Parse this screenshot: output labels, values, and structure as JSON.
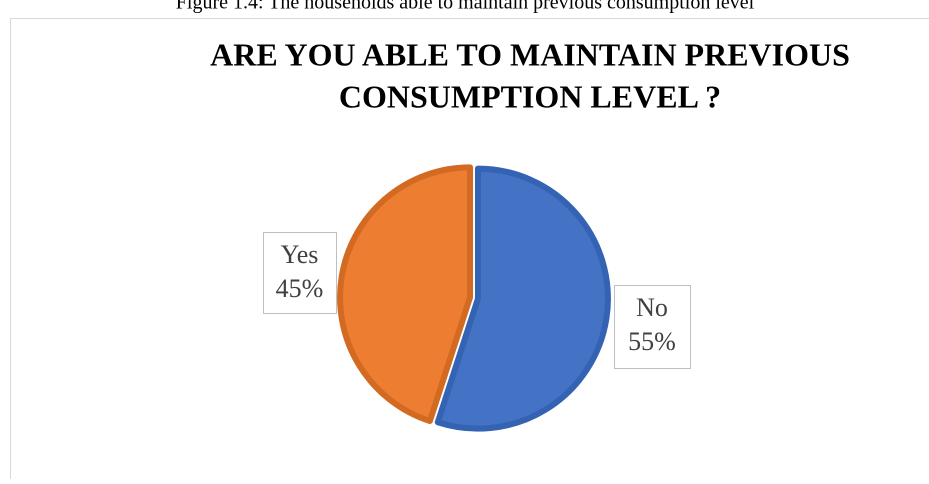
{
  "caption": "Figure 1.4: The households able to maintain previous consumption level",
  "chart_data": {
    "type": "pie",
    "title": [
      "ARE YOU ABLE TO MAINTAIN PREVIOUS",
      "CONSUMPTION LEVEL ?"
    ],
    "categories": [
      "No",
      "Yes"
    ],
    "values": [
      55,
      45
    ],
    "value_labels": [
      "55%",
      "45%"
    ],
    "colors": [
      "#4472c4",
      "#ed7d31"
    ],
    "border_colors": [
      "#3563b3",
      "#d26a22"
    ]
  }
}
